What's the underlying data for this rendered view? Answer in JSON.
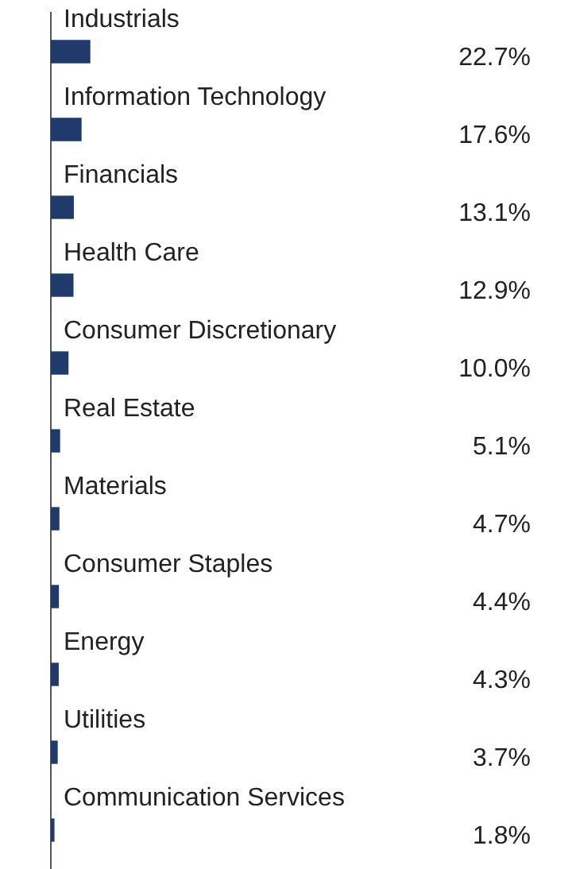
{
  "chart_data": {
    "type": "bar",
    "orientation": "horizontal",
    "categories": [
      "Industrials",
      "Information Technology",
      "Financials",
      "Health Care",
      "Consumer Discretionary",
      "Real Estate",
      "Materials",
      "Consumer Staples",
      "Energy",
      "Utilities",
      "Communication Services"
    ],
    "values": [
      22.7,
      17.6,
      13.1,
      12.9,
      10.0,
      5.1,
      4.7,
      4.4,
      4.3,
      3.7,
      1.8
    ],
    "value_labels": [
      "22.7%",
      "17.6%",
      "13.1%",
      "12.9%",
      "10.0%",
      "5.1%",
      "4.7%",
      "4.4%",
      "4.3%",
      "3.7%",
      "1.8%"
    ],
    "color": "#1f3a6b",
    "legend": false
  }
}
